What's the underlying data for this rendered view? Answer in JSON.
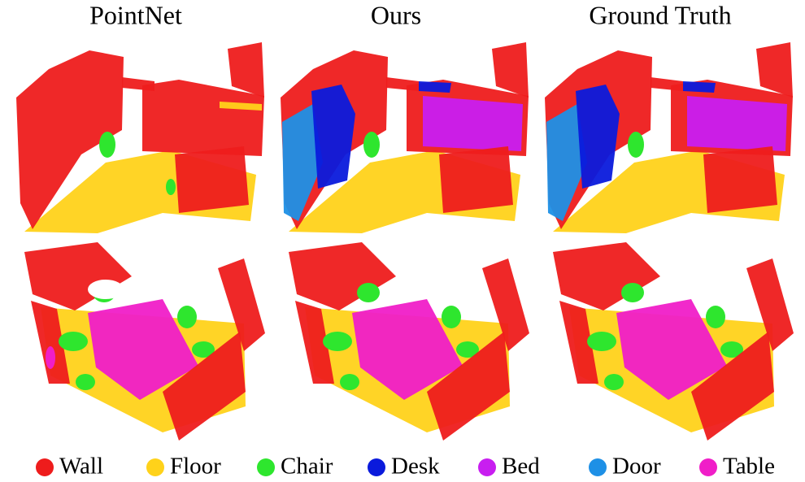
{
  "columns": [
    {
      "title": "PointNet"
    },
    {
      "title": "Ours"
    },
    {
      "title": "Ground Truth"
    }
  ],
  "legend": [
    {
      "label": "Wall",
      "color": "#ee1c1c"
    },
    {
      "label": "Floor",
      "color": "#ffd21a"
    },
    {
      "label": "Chair",
      "color": "#2ee62e"
    },
    {
      "label": "Desk",
      "color": "#0a1adc"
    },
    {
      "label": "Bed",
      "color": "#c81ef0"
    },
    {
      "label": "Door",
      "color": "#1e90e6"
    },
    {
      "label": "Table",
      "color": "#f01ec8"
    }
  ]
}
